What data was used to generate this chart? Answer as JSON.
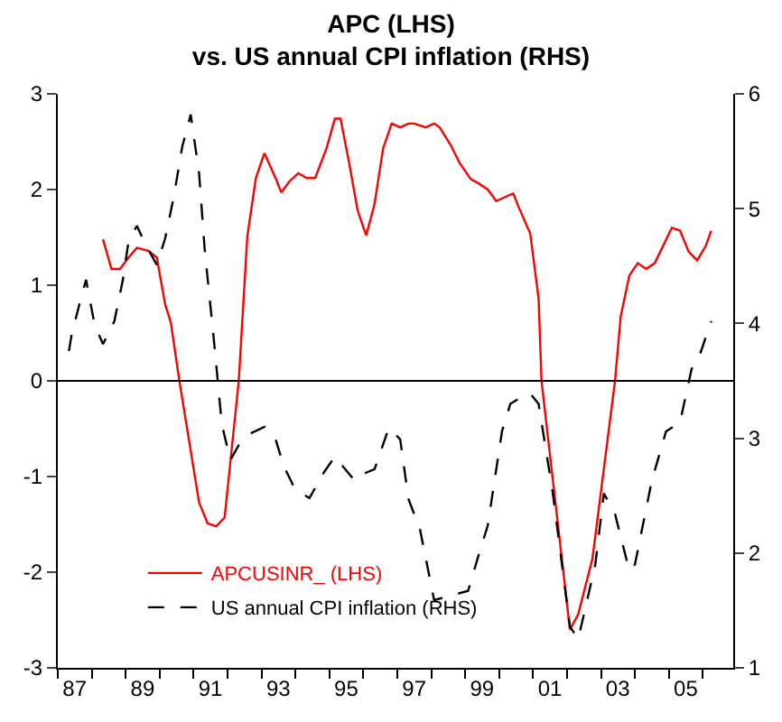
{
  "chart_data": {
    "type": "line",
    "title": "APC (LHS)\nvs. US annual CPI inflation (RHS)",
    "xlim": [
      "1987-01-01",
      "2006-11-24"
    ],
    "xticks": [
      {
        "value": "1987-01",
        "label": null
      },
      {
        "value": "1987-07",
        "label": "87"
      },
      {
        "value": "1988-01",
        "label": null
      },
      {
        "value": "1989-01",
        "label": null
      },
      {
        "value": "1989-07",
        "label": "89"
      },
      {
        "value": "1990-01",
        "label": null
      },
      {
        "value": "1991-01",
        "label": null
      },
      {
        "value": "1991-07",
        "label": "91"
      },
      {
        "value": "1992-01",
        "label": null
      },
      {
        "value": "1993-01",
        "label": null
      },
      {
        "value": "1993-07",
        "label": "93"
      },
      {
        "value": "1994-01",
        "label": null
      },
      {
        "value": "1995-01",
        "label": null
      },
      {
        "value": "1995-07",
        "label": "95"
      },
      {
        "value": "1996-01",
        "label": null
      },
      {
        "value": "1997-01",
        "label": null
      },
      {
        "value": "1997-07",
        "label": "97"
      },
      {
        "value": "1998-01",
        "label": null
      },
      {
        "value": "1999-01",
        "label": null
      },
      {
        "value": "1999-07",
        "label": "99"
      },
      {
        "value": "2000-01",
        "label": null
      },
      {
        "value": "2001-01",
        "label": null
      },
      {
        "value": "2001-07",
        "label": "01"
      },
      {
        "value": "2002-01",
        "label": null
      },
      {
        "value": "2003-01",
        "label": null
      },
      {
        "value": "2003-07",
        "label": "03"
      },
      {
        "value": "2004-01",
        "label": null
      },
      {
        "value": "2005-01",
        "label": null
      },
      {
        "value": "2005-07",
        "label": "05"
      },
      {
        "value": "2006-01",
        "label": null
      }
    ],
    "ylim": [
      -3,
      3
    ],
    "yticks": [
      -3,
      -2,
      -1,
      0,
      1,
      2,
      3
    ],
    "y2lim": [
      1,
      6
    ],
    "y2ticks": [
      1,
      2,
      3,
      4,
      5,
      6
    ],
    "legend": "bottom left",
    "ref_lines": [
      {
        "axis": "y",
        "value": 0,
        "color": "#000000",
        "line_style": "solid"
      }
    ],
    "series": [
      {
        "name": "APCUSINR_ (LHS)",
        "color": "#ff0000",
        "line_style": "solid",
        "x": [
          "1988-05",
          "1988-08",
          "1988-11",
          "1989-02",
          "1989-05",
          "1989-09",
          "1989-12",
          "1990-03",
          "1990-05",
          "1990-08",
          "1991-03",
          "1991-06",
          "1991-09",
          "1991-12",
          "1992-05",
          "1992-08",
          "1992-11",
          "1993-02",
          "1993-06",
          "1993-08",
          "1993-11",
          "1994-02",
          "1994-05",
          "1994-08",
          "1994-12",
          "1995-03",
          "1995-05",
          "1995-08",
          "1995-11",
          "1996-02",
          "1996-05",
          "1996-08",
          "1996-11",
          "1997-02",
          "1997-05",
          "1997-07",
          "1997-11",
          "1998-02",
          "1998-04",
          "1998-08",
          "1998-11",
          "1999-03",
          "1999-06",
          "1999-09",
          "1999-12",
          "2000-06",
          "2000-08",
          "2000-12",
          "2001-03",
          "2001-04",
          "2002-02",
          "2002-05",
          "2002-10",
          "2003-06",
          "2003-08",
          "2003-11",
          "2004-02",
          "2004-05",
          "2004-08",
          "2005-02",
          "2005-05",
          "2005-08",
          "2005-11",
          "2006-02",
          "2006-04"
        ],
        "values": [
          1.48,
          1.17,
          1.17,
          1.29,
          1.39,
          1.36,
          1.29,
          0.8,
          0.61,
          0.0,
          -1.27,
          -1.49,
          -1.52,
          -1.43,
          0.0,
          1.51,
          2.12,
          2.38,
          2.12,
          1.97,
          2.09,
          2.17,
          2.12,
          2.12,
          2.43,
          2.74,
          2.74,
          2.28,
          1.78,
          1.52,
          1.85,
          2.43,
          2.69,
          2.65,
          2.69,
          2.69,
          2.65,
          2.69,
          2.65,
          2.46,
          2.28,
          2.11,
          2.06,
          2.0,
          1.88,
          1.96,
          1.81,
          1.54,
          0.86,
          0.0,
          -2.6,
          -2.44,
          -1.86,
          0.0,
          0.67,
          1.1,
          1.23,
          1.17,
          1.23,
          1.6,
          1.57,
          1.35,
          1.26,
          1.41,
          1.57
        ]
      },
      {
        "name": "US annual CPI inflation (RHS)",
        "color": "#000000",
        "line_style": "dashed",
        "axis": "y2",
        "x": [
          "1987-05",
          "1987-06",
          "1987-09",
          "1987-11",
          "1988-02",
          "1988-05",
          "1988-09",
          "1988-12",
          "1989-02",
          "1989-05",
          "1989-08",
          "1989-12",
          "1990-03",
          "1990-06",
          "1990-09",
          "1990-12",
          "1991-03",
          "1991-05",
          "1991-08",
          "1991-11",
          "1992-02",
          "1992-05",
          "1992-09",
          "1993-02",
          "1993-06",
          "1993-09",
          "1994-01",
          "1994-06",
          "1994-11",
          "1995-03",
          "1995-06",
          "1995-10",
          "1996-02",
          "1996-05",
          "1996-10",
          "1997-02",
          "1997-05",
          "1997-09",
          "1998-02",
          "1999-02",
          "1999-06",
          "1999-09",
          "2000-02",
          "2000-05",
          "2000-09",
          "2000-12",
          "2001-03",
          "2001-08",
          "2002-02",
          "2002-05",
          "2002-11",
          "2003-02",
          "2003-06",
          "2003-11",
          "2004-01",
          "2004-07",
          "2004-12",
          "2005-05",
          "2005-09",
          "2005-12",
          "2006-04"
        ],
        "values": [
          3.76,
          3.91,
          4.2,
          4.38,
          3.99,
          3.82,
          4.02,
          4.38,
          4.72,
          4.85,
          4.69,
          4.51,
          4.74,
          5.1,
          5.54,
          5.82,
          5.31,
          4.64,
          3.91,
          3.12,
          2.81,
          2.94,
          3.04,
          3.1,
          2.99,
          2.75,
          2.55,
          2.48,
          2.7,
          2.84,
          2.75,
          2.63,
          2.7,
          2.73,
          3.09,
          2.99,
          2.47,
          2.21,
          1.59,
          1.67,
          2.0,
          2.24,
          3.06,
          3.3,
          3.36,
          3.39,
          3.3,
          2.52,
          1.36,
          1.25,
          1.9,
          2.52,
          2.34,
          1.85,
          1.9,
          2.63,
          3.06,
          3.14,
          3.6,
          3.73,
          4.02
        ]
      }
    ]
  }
}
